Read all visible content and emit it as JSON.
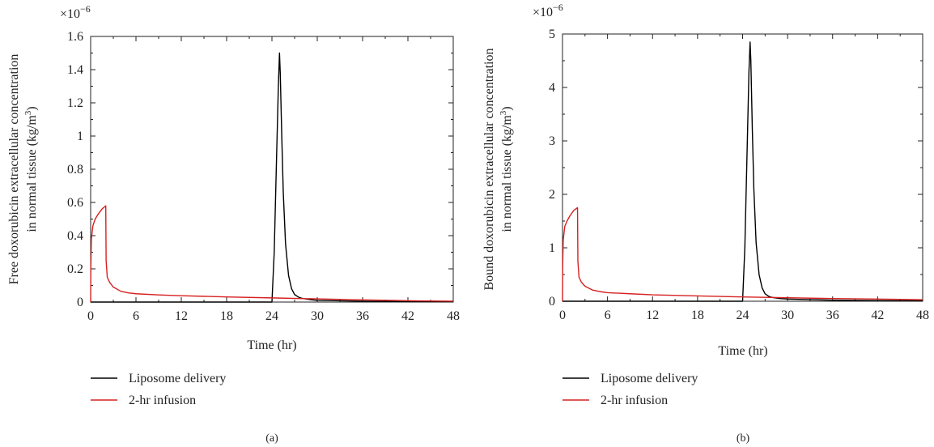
{
  "chart_data": [
    {
      "type": "line",
      "panel_label": "(a)",
      "multiplier_label": "×10",
      "multiplier_exp": "−6",
      "xlabel": "Time (hr)",
      "ylabel_line1": "Free doxorubicin extracellular concentration",
      "ylabel_line2_pre": "in normal tissue (kg/m",
      "ylabel_line2_sup": "3",
      "ylabel_line2_post": ")",
      "xlim": [
        0,
        48
      ],
      "ylim": [
        0,
        1.6
      ],
      "xticks": [
        0,
        6,
        12,
        18,
        24,
        30,
        36,
        42,
        48
      ],
      "xtick_labels": [
        "0",
        "6",
        "12",
        "18",
        "24",
        "30",
        "36",
        "42",
        "48"
      ],
      "yticks": [
        0,
        0.2,
        0.4,
        0.6,
        0.8,
        1.0,
        1.2,
        1.4,
        1.6
      ],
      "ytick_labels": [
        "0",
        "0.2",
        "0.4",
        "0.6",
        "0.8",
        "1",
        "1.2",
        "1.4",
        "1.6"
      ],
      "legend_position": "below",
      "series": [
        {
          "name": "Liposome delivery",
          "color": "#000000",
          "x": [
            0,
            24.0,
            24.3,
            24.6,
            24.85,
            25.0,
            25.1,
            25.3,
            25.5,
            25.8,
            26.2,
            26.6,
            27.0,
            27.5,
            28.0,
            29.0,
            30.0,
            36.0,
            42.0,
            48.0
          ],
          "y": [
            0,
            0,
            0.3,
            0.85,
            1.3,
            1.5,
            1.38,
            1.0,
            0.66,
            0.35,
            0.16,
            0.08,
            0.045,
            0.03,
            0.022,
            0.015,
            0.01,
            0.005,
            0.003,
            0.002
          ]
        },
        {
          "name": "2-hr infusion",
          "color": "#d62020",
          "x": [
            0,
            0.03,
            0.1,
            0.3,
            0.6,
            1.0,
            1.5,
            2.0,
            2.05,
            2.2,
            2.5,
            3.0,
            4.0,
            5.0,
            6.0,
            9.0,
            12.0,
            18.0,
            24.0,
            30.0,
            36.0,
            42.0,
            48.0
          ],
          "y": [
            0,
            0.22,
            0.38,
            0.46,
            0.5,
            0.53,
            0.56,
            0.58,
            0.25,
            0.15,
            0.12,
            0.09,
            0.065,
            0.055,
            0.05,
            0.043,
            0.038,
            0.031,
            0.025,
            0.019,
            0.013,
            0.008,
            0.005
          ]
        }
      ]
    },
    {
      "type": "line",
      "panel_label": "(b)",
      "multiplier_label": "×10",
      "multiplier_exp": "−6",
      "xlabel": "Time (hr)",
      "ylabel_line1": "Bound doxorubicin extracellular concentration",
      "ylabel_line2_pre": "in normal tissue (kg/m",
      "ylabel_line2_sup": "3",
      "ylabel_line2_post": ")",
      "xlim": [
        0,
        48
      ],
      "ylim": [
        0,
        5
      ],
      "xticks": [
        0,
        6,
        12,
        18,
        24,
        30,
        36,
        42,
        48
      ],
      "xtick_labels": [
        "0",
        "6",
        "12",
        "18",
        "24",
        "30",
        "36",
        "42",
        "48"
      ],
      "yticks": [
        0,
        1,
        2,
        3,
        4,
        5
      ],
      "ytick_labels": [
        "0",
        "1",
        "2",
        "3",
        "4",
        "5"
      ],
      "legend_position": "below",
      "series": [
        {
          "name": "Liposome delivery",
          "color": "#000000",
          "x": [
            0,
            24.0,
            24.3,
            24.6,
            24.85,
            25.0,
            25.1,
            25.3,
            25.5,
            25.8,
            26.2,
            26.6,
            27.0,
            27.5,
            28.0,
            29.0,
            30.0,
            36.0,
            42.0,
            48.0
          ],
          "y": [
            0,
            0,
            1.0,
            2.8,
            4.3,
            4.85,
            4.5,
            3.2,
            2.1,
            1.1,
            0.5,
            0.25,
            0.14,
            0.09,
            0.07,
            0.05,
            0.04,
            0.02,
            0.012,
            0.008
          ]
        },
        {
          "name": "2-hr infusion",
          "color": "#d62020",
          "x": [
            0,
            0.03,
            0.1,
            0.3,
            0.6,
            1.0,
            1.5,
            2.0,
            2.05,
            2.2,
            2.5,
            3.0,
            4.0,
            5.0,
            6.0,
            9.0,
            12.0,
            18.0,
            24.0,
            30.0,
            36.0,
            42.0,
            48.0
          ],
          "y": [
            0,
            0.7,
            1.15,
            1.4,
            1.5,
            1.6,
            1.7,
            1.75,
            0.75,
            0.45,
            0.36,
            0.28,
            0.21,
            0.18,
            0.16,
            0.14,
            0.12,
            0.1,
            0.08,
            0.065,
            0.05,
            0.04,
            0.03
          ]
        }
      ]
    }
  ]
}
